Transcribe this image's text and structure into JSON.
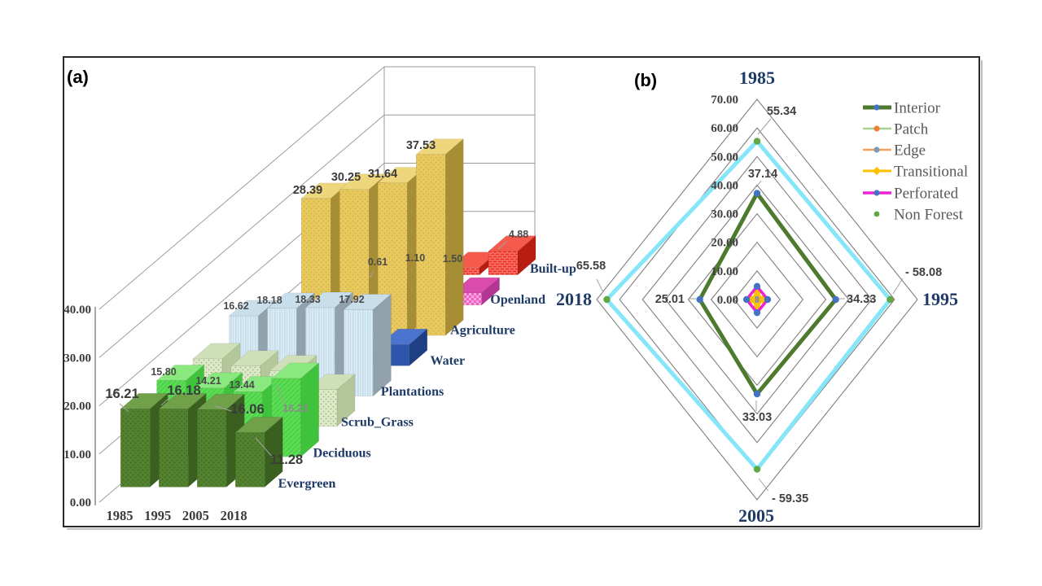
{
  "figure": {
    "panel_a_letter": "(a)",
    "panel_b_letter": "(b)"
  },
  "chart_data": [
    {
      "panel": "a",
      "type": "bar3d",
      "years": [
        "1985",
        "1995",
        "2005",
        "2018"
      ],
      "y_axis": {
        "ticks": [
          "0.00",
          "10.00",
          "20.00",
          "30.00",
          "40.00"
        ],
        "max": 40
      },
      "series": [
        {
          "name": "Evergreen",
          "values": [
            16.21,
            16.18,
            16.06,
            11.28
          ],
          "show_labels": true,
          "estimated": false,
          "colors": {
            "front": "#52812f",
            "side": "#3a6020",
            "top": "#70a04a",
            "texture": "#3d6a1f"
          },
          "pattern": "dots"
        },
        {
          "name": "Deciduous",
          "values": [
            15.8,
            14.21,
            13.44,
            16.23
          ],
          "show_labels": true,
          "estimated": false,
          "colors": {
            "front": "#5edc53",
            "side": "#3fc33c",
            "top": "#8ae97e",
            "texture": "#3ecb46"
          },
          "pattern": "hatch"
        },
        {
          "name": "Scrub_Grass",
          "values": [
            14.0,
            12.5,
            11.5,
            7.6
          ],
          "show_labels": false,
          "estimated": true,
          "colors": {
            "front": "#dde9c8",
            "side": "#b6c69b",
            "top": "#cfdfb8",
            "texture": "#9cb579"
          },
          "pattern": "dots"
        },
        {
          "name": "Plantations",
          "values": [
            16.62,
            18.18,
            18.33,
            17.92
          ],
          "show_labels": true,
          "estimated": false,
          "colors": {
            "front": "#dcecf5",
            "side": "#91a2ad",
            "top": "#c8dfeb",
            "texture": "#c2dcea"
          },
          "pattern": "vstripes"
        },
        {
          "name": "Water",
          "values": [
            2.6,
            2.4,
            2.2,
            4.4
          ],
          "show_labels": false,
          "estimated": true,
          "colors": {
            "front": "#2e55ac",
            "side": "#1f3f85",
            "top": "#4a74ce",
            "texture": "#2e55ac"
          },
          "pattern": "none"
        },
        {
          "name": "Agriculture",
          "values": [
            28.39,
            30.25,
            31.64,
            37.53
          ],
          "show_labels": true,
          "estimated": false,
          "colors": {
            "front": "#e8c95f",
            "side": "#a78e35",
            "top": "#edd67c",
            "texture": "#d2ae42"
          },
          "pattern": "dots"
        },
        {
          "name": "Openland",
          "values": [
            2.3,
            2.3,
            2.3,
            2.5
          ],
          "show_labels": false,
          "estimated": true,
          "colors": {
            "front": "#f45cc3",
            "side": "#b23691",
            "top": "#d94bad",
            "texture": "#fda8e0"
          },
          "pattern": "checker"
        },
        {
          "name": "Built-up",
          "values": [
            0.61,
            1.1,
            1.5,
            4.88
          ],
          "show_labels": true,
          "estimated": false,
          "colors": {
            "front": "#ee3023",
            "side": "#b81d12",
            "top": "#f65a4d",
            "texture": "#ffa199"
          },
          "pattern": "brick"
        }
      ]
    },
    {
      "panel": "b",
      "type": "radar",
      "axes": [
        "1985",
        "1995",
        "2005",
        "2018"
      ],
      "ring_ticks": [
        "0.00",
        "10.00",
        "20.00",
        "30.00",
        "40.00",
        "50.00",
        "60.00",
        "70.00"
      ],
      "max": 70,
      "series": [
        {
          "name": "Interior",
          "values": [
            37.14,
            34.33,
            33.03,
            25.01
          ],
          "show_labels": true,
          "estimated": false,
          "line": "#4e7a2d",
          "marker": "#4472c4",
          "marker_shape": "circle",
          "width": 5
        },
        {
          "name": "Patch",
          "values": [
            0.9,
            0.9,
            0.9,
            0.9
          ],
          "show_labels": false,
          "estimated": true,
          "line": "#a9d18e",
          "marker": "#ed7d31",
          "marker_shape": "circle",
          "width": 2.5
        },
        {
          "name": "Edge",
          "values": [
            1.3,
            1.3,
            1.3,
            1.3
          ],
          "show_labels": false,
          "estimated": true,
          "line": "#f1a35c",
          "marker": "#8497b0",
          "marker_shape": "circle",
          "width": 2.5
        },
        {
          "name": "Transitional",
          "values": [
            2.4,
            2.4,
            2.4,
            2.4
          ],
          "show_labels": false,
          "estimated": true,
          "line": "#ffc000",
          "marker": "#ffc000",
          "marker_shape": "diamond",
          "width": 3
        },
        {
          "name": "Perforated",
          "values": [
            4.6,
            4.6,
            4.6,
            4.6
          ],
          "show_labels": false,
          "estimated": true,
          "line": "#ee22d3",
          "marker": "#4472c4",
          "marker_shape": "circle",
          "width": 3.5
        },
        {
          "name": "Non Forest",
          "values": [
            55.34,
            58.08,
            59.35,
            65.58
          ],
          "show_labels": true,
          "estimated": false,
          "line": "#85e6fa",
          "marker": "#61a744",
          "marker_shape": "circle",
          "width": 5,
          "legend_line_hidden": true
        }
      ],
      "legend": [
        "Interior",
        "Patch",
        "Edge",
        "Transitional",
        "Perforated",
        "Non Forest"
      ]
    }
  ],
  "colors": {
    "navy_label": "#1e3a67",
    "axis_text": "#3a3a3a",
    "data_label": "#3b3b3b",
    "grid": "#9a9a9a",
    "ring": "#7f7f7f",
    "legend_text": "#595959",
    "leader": "#a0a0a0",
    "frame": "#2a2a2a"
  }
}
